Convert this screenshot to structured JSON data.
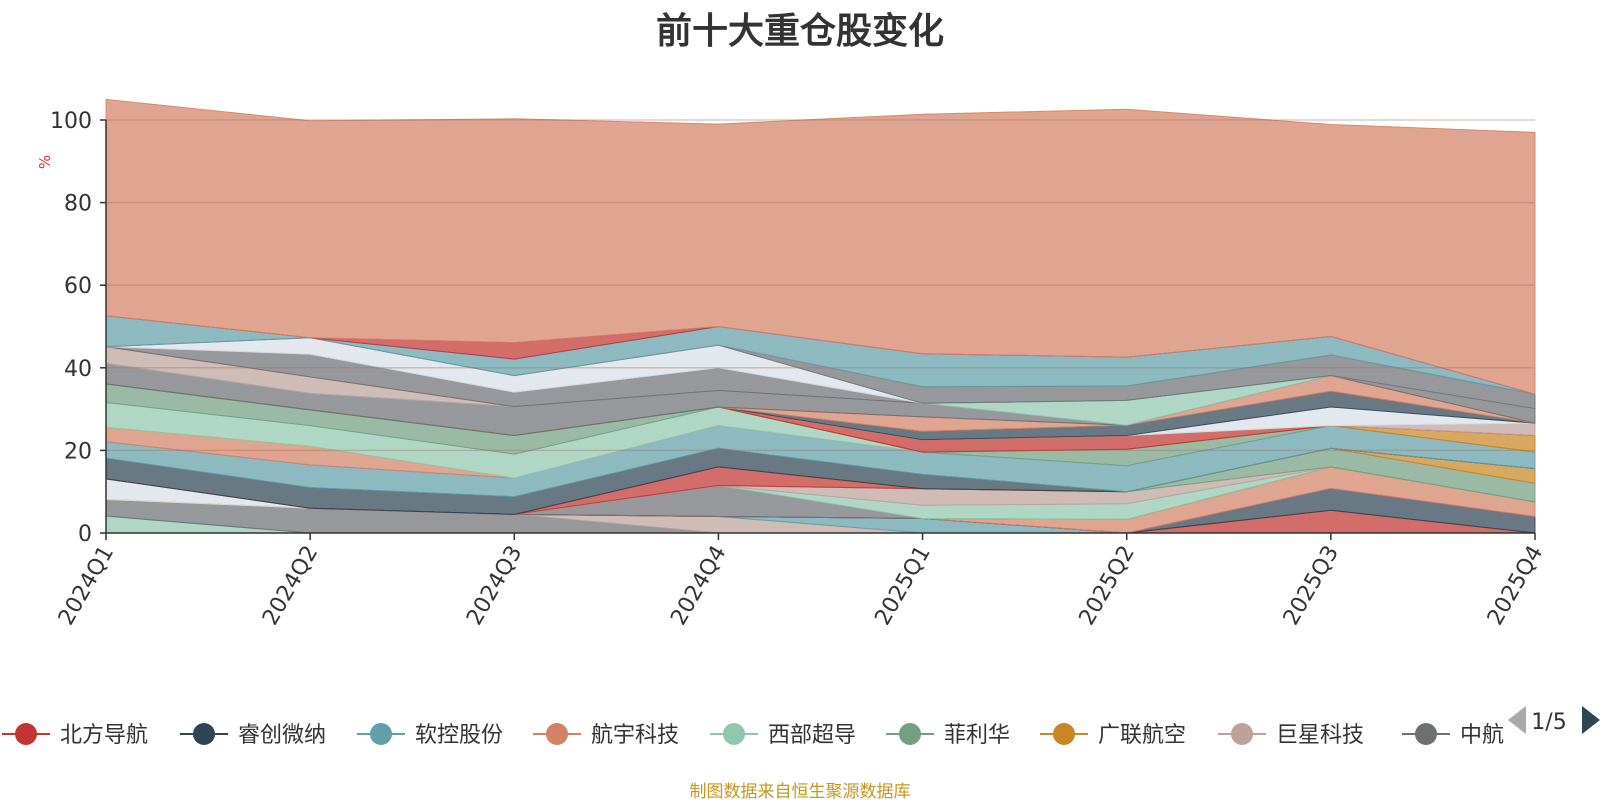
{
  "source_note": "制图数据来自恒生聚源数据库",
  "pager": {
    "label": "1/5"
  },
  "chart_data": {
    "type": "area",
    "stacked": true,
    "title": "前十大重仓股变化",
    "ylabel": "%",
    "ylim": [
      0,
      100
    ],
    "yticks": [
      0,
      20,
      40,
      60,
      80,
      100
    ],
    "categories": [
      "2024Q1",
      "2024Q2",
      "2024Q3",
      "2024Q4",
      "2025Q1",
      "2025Q2",
      "2025Q3",
      "2025Q4"
    ],
    "grid": true,
    "legend_position": "bottom",
    "legend": [
      {
        "name": "北方导航",
        "color": "#c23531"
      },
      {
        "name": "睿创微纳",
        "color": "#2f4554"
      },
      {
        "name": "软控股份",
        "color": "#61a0a8"
      },
      {
        "name": "航宇科技",
        "color": "#d48265"
      },
      {
        "name": "西部超导",
        "color": "#91c7ae"
      },
      {
        "name": "菲利华",
        "color": "#749f83"
      },
      {
        "name": "广联航空",
        "color": "#ca8622"
      },
      {
        "name": "巨星科技",
        "color": "#bda29a"
      },
      {
        "name": "中航",
        "color": "#6e7074"
      }
    ],
    "layers": [
      {
        "color": "#91c7ae",
        "values": [
          4.1,
          0,
          0,
          0,
          0,
          0,
          0,
          0
        ]
      },
      {
        "color": "#6e7074",
        "values": [
          4,
          6,
          4.5,
          0,
          0,
          0,
          0,
          0
        ]
      },
      {
        "color": "#bda29a",
        "values": [
          0,
          0,
          0,
          4,
          0,
          0,
          0,
          0
        ]
      },
      {
        "color": "#61a0a8",
        "values": [
          0,
          0,
          0,
          0,
          3.5,
          0,
          0,
          0
        ]
      },
      {
        "color": "#c23531",
        "values": [
          0,
          0,
          0,
          0,
          0,
          0,
          5.5,
          0
        ]
      },
      {
        "color": "#2f4554",
        "values": [
          0,
          0,
          0,
          0,
          0,
          0,
          5.3,
          4
        ]
      },
      {
        "color": "#d48265",
        "values": [
          0,
          0,
          0,
          0,
          0,
          3.3,
          5.2,
          3.5
        ]
      },
      {
        "color": "#6e7074",
        "values": [
          0,
          0,
          0,
          7.5,
          0,
          0,
          0,
          0
        ]
      },
      {
        "color": "#91c7ae",
        "values": [
          0,
          0,
          0,
          0,
          3.2,
          3.8,
          0,
          0
        ]
      },
      {
        "color": "#bda29a",
        "values": [
          0,
          0,
          0,
          0,
          4,
          2.9,
          0,
          0
        ]
      },
      {
        "color": "#749f83",
        "values": [
          0,
          0,
          0,
          0,
          0,
          0,
          4.5,
          4.5
        ]
      },
      {
        "color": "#ca8622",
        "values": [
          0,
          0,
          0,
          0,
          0,
          0,
          0,
          3.6
        ]
      },
      {
        "color": "#d7dfe8",
        "values": [
          5,
          0,
          0,
          0,
          0,
          0,
          0,
          0
        ]
      },
      {
        "color": "#c23531",
        "values": [
          0,
          0,
          0,
          4.5,
          0,
          0,
          0,
          0
        ]
      },
      {
        "color": "#2f4554",
        "values": [
          5,
          5,
          4.3,
          4.5,
          3.5,
          0,
          0,
          0
        ]
      },
      {
        "color": "#61a0a8",
        "values": [
          4,
          5.5,
          4.5,
          5.5,
          5.4,
          6.3,
          5.5,
          4
        ]
      },
      {
        "color": "#d48265",
        "values": [
          3.5,
          4.5,
          0,
          0,
          0,
          0,
          0,
          0
        ]
      },
      {
        "color": "#91c7ae",
        "values": [
          6,
          5,
          5.8,
          4.5,
          0,
          0,
          0,
          0
        ]
      },
      {
        "color": "#749f83",
        "values": [
          4.5,
          3.8,
          4.5,
          0,
          0,
          4,
          0,
          0
        ]
      },
      {
        "color": "#ca8622",
        "values": [
          0,
          0,
          0,
          0,
          0,
          0,
          0,
          4
        ]
      },
      {
        "color": "#c23531",
        "values": [
          0,
          0,
          0,
          0,
          3,
          3.3,
          0,
          0
        ]
      },
      {
        "color": "#bda29a",
        "values": [
          0,
          0,
          0,
          0,
          0,
          0,
          0,
          3
        ]
      },
      {
        "color": "#d7dfe8",
        "values": [
          0,
          0,
          0,
          0,
          0,
          0,
          4.5,
          0
        ]
      },
      {
        "color": "#2f4554",
        "values": [
          0,
          0,
          0,
          0,
          2,
          2.5,
          3.8,
          0
        ]
      },
      {
        "color": "#d48265",
        "values": [
          0,
          0,
          0,
          0,
          3.5,
          0,
          3.8,
          0
        ]
      },
      {
        "color": "#6e7074",
        "values": [
          5,
          4,
          7,
          4,
          3.3,
          0,
          0,
          3.5
        ]
      },
      {
        "color": "#91c7ae",
        "values": [
          0,
          0,
          0,
          0,
          0,
          6,
          0,
          0
        ]
      },
      {
        "color": "#bda29a",
        "values": [
          4,
          4,
          0,
          0,
          0,
          0,
          0,
          0
        ]
      },
      {
        "color": "#6e7074",
        "values": [
          0,
          5.5,
          3.5,
          5.5,
          0,
          0,
          0,
          0
        ]
      },
      {
        "color": "#d7dfe8",
        "values": [
          0,
          4,
          4,
          5.5,
          0,
          0,
          0,
          0
        ]
      },
      {
        "color": "#6e7074",
        "values": [
          0,
          0,
          0,
          0,
          4,
          3.5,
          5,
          3.5
        ]
      },
      {
        "color": "#61a0a8",
        "values": [
          7.5,
          0,
          4,
          4.5,
          8,
          7,
          4.5,
          0
        ]
      },
      {
        "color": "#c23531",
        "values": [
          0,
          0,
          4,
          0,
          0,
          0,
          0,
          0
        ]
      },
      {
        "color": "#d48265",
        "values": [
          52.4,
          52.5,
          54.2,
          49,
          58,
          60,
          51.3,
          63.4
        ]
      }
    ]
  }
}
